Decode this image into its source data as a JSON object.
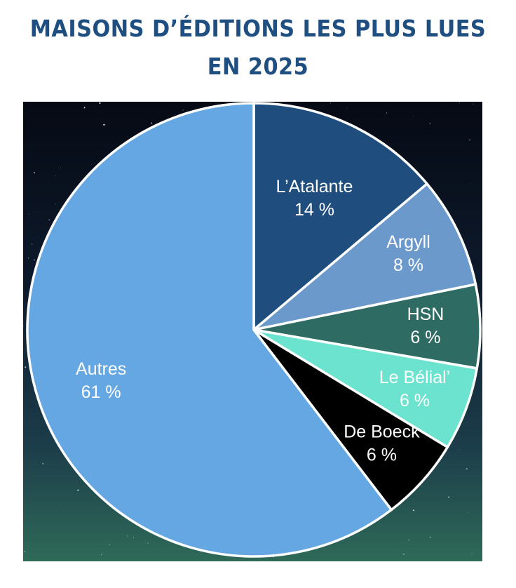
{
  "chart_data": {
    "type": "pie",
    "title_lines": [
      "MAISONS D’ÉDITIONS LES PLUS LUES",
      "EN 2025"
    ],
    "slices": [
      {
        "label": "L’Atalante",
        "value": 14,
        "value_label": "14 %",
        "color": "#1f4e7e"
      },
      {
        "label": "Argyll",
        "value": 8,
        "value_label": "8 %",
        "color": "#6b99cc"
      },
      {
        "label": "HSN",
        "value": 6,
        "value_label": "6 %",
        "color": "#2d6b63"
      },
      {
        "label": "Le Bélial’",
        "value": 6,
        "value_label": "6 %",
        "color": "#6ce3cf"
      },
      {
        "label": "De Boeck",
        "value": 6,
        "value_label": "6 %",
        "color": "#000000"
      },
      {
        "label": "Autres",
        "value": 61,
        "value_label": "61 %",
        "color": "#65a7e3"
      }
    ],
    "start": "top, clockwise",
    "slice_border_color": "#ffffff",
    "title_color": "#1f4e80",
    "legend": "none (labels inside slices)"
  }
}
